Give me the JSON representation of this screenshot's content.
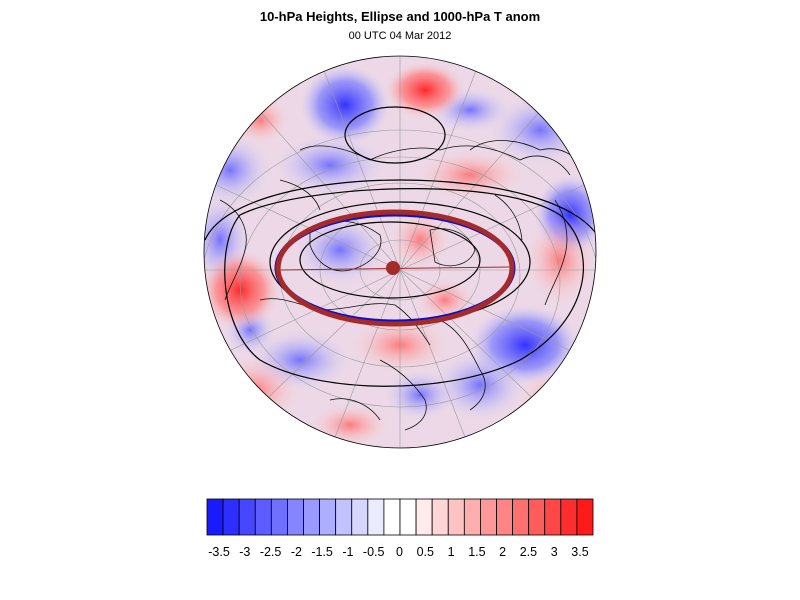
{
  "title": "10-hPa Heights, Ellipse and 1000-hPa T anom",
  "subtitle": "00 UTC 04 Mar 2012",
  "map": {
    "projection": "orthographic-polar",
    "field": "1000-hPa T anom",
    "overlays": [
      "10-hPa Heights",
      "Ellipse"
    ],
    "colors": {
      "cold": "#1a1aff",
      "warm": "#ff1a1a",
      "ellipse_fit": "#a52a2a",
      "ellipse_obs": "#1010c0",
      "contour": "#000000",
      "graticule": "#9a9a9a"
    }
  },
  "colorbar": {
    "labels": [
      "-3.5",
      "-3",
      "-2.5",
      "-2",
      "-1.5",
      "-1",
      "-0.5",
      "0",
      "0.5",
      "1",
      "1.5",
      "2",
      "2.5",
      "3",
      "3.5"
    ],
    "colors": [
      "#1a1aff",
      "#2e2eff",
      "#4747ff",
      "#5c5cff",
      "#7070ff",
      "#8585ff",
      "#9999ff",
      "#aeaeff",
      "#c2c2ff",
      "#d6d6ff",
      "#ebebff",
      "#ffffff",
      "#ffffff",
      "#ffebeb",
      "#ffd6d6",
      "#ffc2c2",
      "#ffaeae",
      "#ff9999",
      "#ff8585",
      "#ff7070",
      "#ff5c5c",
      "#ff4747",
      "#ff2e2e",
      "#ff1a1a"
    ]
  }
}
